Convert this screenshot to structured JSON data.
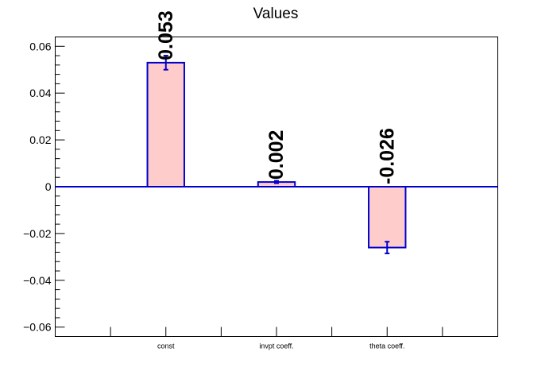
{
  "chart_data": {
    "type": "bar",
    "title": "Values",
    "xlabel": "",
    "ylabel": "",
    "categories": [
      "const",
      "invpt coeff.",
      "theta coeff."
    ],
    "values": [
      0.053,
      0.002,
      -0.026
    ],
    "errors": [
      0.003,
      0.0005,
      0.0025
    ],
    "data_labels": [
      "0.053",
      "0.002",
      "-0.026"
    ],
    "ylim": [
      -0.064,
      0.064
    ],
    "yticks": [
      -0.06,
      -0.04,
      -0.02,
      0,
      0.02,
      0.04,
      0.06
    ],
    "ytick_labels": [
      "−0.06",
      "−0.04",
      "−0.02",
      "0",
      "0.02",
      "0.04",
      "0.06"
    ],
    "grid": false,
    "legend": "none",
    "colors": {
      "bar_fill": "#ffcccc",
      "bar_edge": "#0000cc",
      "zero_line": "#0000cc",
      "error_bar": "#0000cc"
    }
  }
}
